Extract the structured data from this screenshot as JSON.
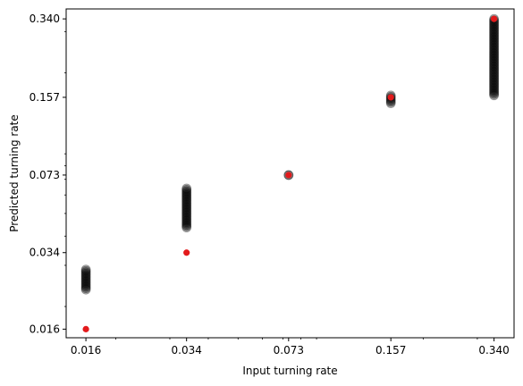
{
  "chart_data": {
    "type": "scatter",
    "title": "",
    "xlabel": "Input turning rate",
    "ylabel": "Predicted turning rate",
    "scale": "log",
    "grid": false,
    "legend": "none",
    "xlim": [
      0.0138,
      0.395
    ],
    "ylim": [
      0.0147,
      0.375
    ],
    "xticks": [
      0.016,
      0.034,
      0.073,
      0.157,
      0.34
    ],
    "xtick_labels": [
      "0.016",
      "0.034",
      "0.073",
      "0.157",
      "0.340"
    ],
    "yticks": [
      0.016,
      0.034,
      0.073,
      0.157,
      0.34
    ],
    "ytick_labels": [
      "0.016",
      "0.034",
      "0.073",
      "0.157",
      "0.340"
    ],
    "series": [
      {
        "marker_color": "#000000",
        "marker_alpha": 0.3,
        "groups": [
          {
            "x": 0.016,
            "y_min": 0.0236,
            "y_max": 0.0288
          },
          {
            "x": 0.034,
            "y_min": 0.0435,
            "y_max": 0.064
          },
          {
            "x": 0.073,
            "y_min": 0.073,
            "y_max": 0.073
          },
          {
            "x": 0.157,
            "y_min": 0.148,
            "y_max": 0.16
          },
          {
            "x": 0.34,
            "y_min": 0.16,
            "y_max": 0.34
          }
        ]
      },
      {
        "marker_color": "#e31a1c",
        "points": [
          {
            "x": 0.016,
            "y": 0.016
          },
          {
            "x": 0.034,
            "y": 0.034
          },
          {
            "x": 0.073,
            "y": 0.073
          },
          {
            "x": 0.157,
            "y": 0.157
          },
          {
            "x": 0.34,
            "y": 0.34
          }
        ]
      }
    ]
  }
}
